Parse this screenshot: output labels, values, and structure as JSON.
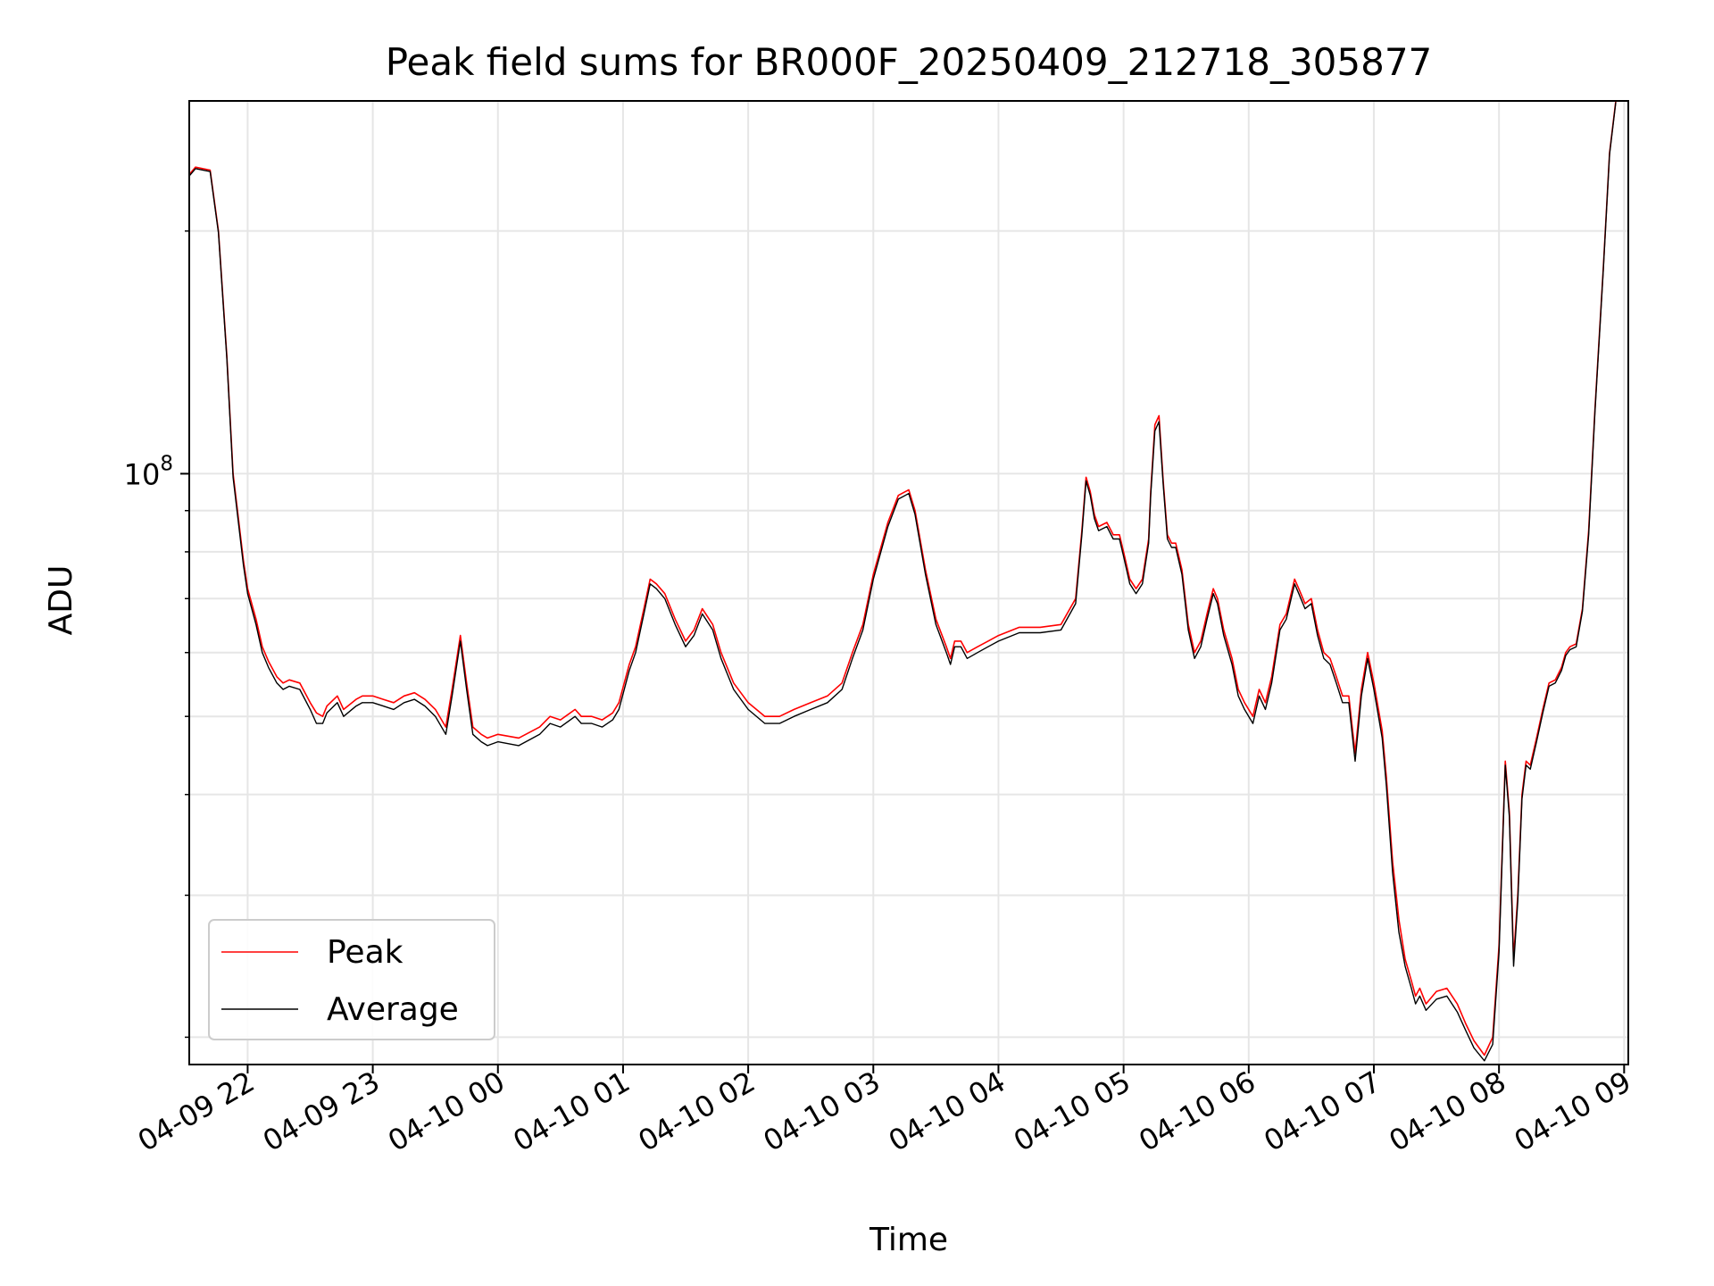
{
  "chart_data": {
    "type": "line",
    "title": "Peak field sums for BR000F_20250409_212718_305877",
    "xlabel": "Time",
    "ylabel": "ADU",
    "yscale": "log",
    "grid": true,
    "legend_position": "lower-left",
    "xlim": [
      "2025-04-09 21:32",
      "2025-04-10 09:02"
    ],
    "ylim": [
      18500000,
      290000000
    ],
    "x_ticks": [
      "2025-04-09 22:00",
      "2025-04-09 23:00",
      "2025-04-10 00:00",
      "2025-04-10 01:00",
      "2025-04-10 02:00",
      "2025-04-10 03:00",
      "2025-04-10 04:00",
      "2025-04-10 05:00",
      "2025-04-10 06:00",
      "2025-04-10 07:00",
      "2025-04-10 08:00",
      "2025-04-10 09:00"
    ],
    "x_tick_labels": [
      "04-09 22",
      "04-09 23",
      "04-10 00",
      "04-10 01",
      "04-10 02",
      "04-10 03",
      "04-10 04",
      "04-10 05",
      "04-10 06",
      "04-10 07",
      "04-10 08",
      "04-10 09"
    ],
    "y_tick_label": {
      "value": 100000000,
      "base": "10",
      "exponent": "8"
    },
    "series": [
      {
        "name": "Peak",
        "color": "#ff0000",
        "x": [
          "2025-04-09 21:32",
          "2025-04-09 21:35",
          "2025-04-09 21:42",
          "2025-04-09 21:46",
          "2025-04-09 21:50",
          "2025-04-09 21:53",
          "2025-04-09 21:58",
          "2025-04-09 22:00",
          "2025-04-09 22:04",
          "2025-04-09 22:07",
          "2025-04-09 22:10",
          "2025-04-09 22:14",
          "2025-04-09 22:17",
          "2025-04-09 22:20",
          "2025-04-09 22:25",
          "2025-04-09 22:30",
          "2025-04-09 22:33",
          "2025-04-09 22:36",
          "2025-04-09 22:38",
          "2025-04-09 22:43",
          "2025-04-09 22:46",
          "2025-04-09 22:52",
          "2025-04-09 22:55",
          "2025-04-09 23:00",
          "2025-04-09 23:05",
          "2025-04-09 23:10",
          "2025-04-09 23:15",
          "2025-04-09 23:20",
          "2025-04-09 23:25",
          "2025-04-09 23:30",
          "2025-04-09 23:35",
          "2025-04-09 23:38",
          "2025-04-09 23:42",
          "2025-04-09 23:45",
          "2025-04-09 23:48",
          "2025-04-09 23:52",
          "2025-04-09 23:55",
          "2025-04-10 00:00",
          "2025-04-10 00:10",
          "2025-04-10 00:20",
          "2025-04-10 00:25",
          "2025-04-10 00:30",
          "2025-04-10 00:37",
          "2025-04-10 00:40",
          "2025-04-10 00:45",
          "2025-04-10 00:50",
          "2025-04-10 00:55",
          "2025-04-10 00:58",
          "2025-04-10 01:03",
          "2025-04-10 01:06",
          "2025-04-10 01:10",
          "2025-04-10 01:13",
          "2025-04-10 01:16",
          "2025-04-10 01:20",
          "2025-04-10 01:25",
          "2025-04-10 01:30",
          "2025-04-10 01:34",
          "2025-04-10 01:38",
          "2025-04-10 01:43",
          "2025-04-10 01:47",
          "2025-04-10 01:53",
          "2025-04-10 02:00",
          "2025-04-10 02:08",
          "2025-04-10 02:15",
          "2025-04-10 02:22",
          "2025-04-10 02:30",
          "2025-04-10 02:38",
          "2025-04-10 02:45",
          "2025-04-10 02:50",
          "2025-04-10 02:55",
          "2025-04-10 03:00",
          "2025-04-10 03:07",
          "2025-04-10 03:12",
          "2025-04-10 03:17",
          "2025-04-10 03:20",
          "2025-04-10 03:25",
          "2025-04-10 03:30",
          "2025-04-10 03:35",
          "2025-04-10 03:37",
          "2025-04-10 03:39",
          "2025-04-10 03:42",
          "2025-04-10 03:45",
          "2025-04-10 03:50",
          "2025-04-10 03:55",
          "2025-04-10 04:00",
          "2025-04-10 04:10",
          "2025-04-10 04:20",
          "2025-04-10 04:30",
          "2025-04-10 04:37",
          "2025-04-10 04:40",
          "2025-04-10 04:42",
          "2025-04-10 04:44",
          "2025-04-10 04:46",
          "2025-04-10 04:48",
          "2025-04-10 04:52",
          "2025-04-10 04:55",
          "2025-04-10 04:58",
          "2025-04-10 05:00",
          "2025-04-10 05:03",
          "2025-04-10 05:06",
          "2025-04-10 05:09",
          "2025-04-10 05:12",
          "2025-04-10 05:13",
          "2025-04-10 05:15",
          "2025-04-10 05:17",
          "2025-04-10 05:19",
          "2025-04-10 05:21",
          "2025-04-10 05:23",
          "2025-04-10 05:25",
          "2025-04-10 05:28",
          "2025-04-10 05:31",
          "2025-04-10 05:34",
          "2025-04-10 05:37",
          "2025-04-10 05:40",
          "2025-04-10 05:43",
          "2025-04-10 05:45",
          "2025-04-10 05:48",
          "2025-04-10 05:52",
          "2025-04-10 05:55",
          "2025-04-10 05:58",
          "2025-04-10 06:02",
          "2025-04-10 06:05",
          "2025-04-10 06:08",
          "2025-04-10 06:11",
          "2025-04-10 06:15",
          "2025-04-10 06:18",
          "2025-04-10 06:22",
          "2025-04-10 06:24",
          "2025-04-10 06:27",
          "2025-04-10 06:30",
          "2025-04-10 06:33",
          "2025-04-10 06:36",
          "2025-04-10 06:39",
          "2025-04-10 06:42",
          "2025-04-10 06:45",
          "2025-04-10 06:48",
          "2025-04-10 06:51",
          "2025-04-10 06:54",
          "2025-04-10 06:57",
          "2025-04-10 07:00",
          "2025-04-10 07:04",
          "2025-04-10 07:06",
          "2025-04-10 07:09",
          "2025-04-10 07:12",
          "2025-04-10 07:15",
          "2025-04-10 07:18",
          "2025-04-10 07:20",
          "2025-04-10 07:22",
          "2025-04-10 07:25",
          "2025-04-10 07:30",
          "2025-04-10 07:35",
          "2025-04-10 07:40",
          "2025-04-10 07:44",
          "2025-04-10 07:48",
          "2025-04-10 07:53",
          "2025-04-10 07:57",
          "2025-04-10 08:00",
          "2025-04-10 08:03",
          "2025-04-10 08:05",
          "2025-04-10 08:07",
          "2025-04-10 08:09",
          "2025-04-10 08:11",
          "2025-04-10 08:13",
          "2025-04-10 08:15",
          "2025-04-10 08:18",
          "2025-04-10 08:21",
          "2025-04-10 08:24",
          "2025-04-10 08:27",
          "2025-04-10 08:30",
          "2025-04-10 08:32",
          "2025-04-10 08:34",
          "2025-04-10 08:37",
          "2025-04-10 08:40",
          "2025-04-10 08:43",
          "2025-04-10 08:46",
          "2025-04-10 08:50",
          "2025-04-10 08:53",
          "2025-04-10 08:56"
        ],
        "y": [
          235000000,
          240000000,
          238000000,
          200000000,
          140000000,
          100000000,
          78000000,
          72000000,
          66000000,
          61000000,
          58500000,
          56000000,
          55000000,
          55500000,
          55000000,
          52000000,
          50500000,
          50000000,
          51500000,
          53000000,
          51000000,
          52500000,
          53000000,
          53000000,
          52500000,
          52000000,
          53000000,
          53500000,
          52500000,
          51000000,
          48500000,
          54000000,
          63000000,
          55000000,
          48500000,
          47500000,
          47000000,
          47500000,
          47000000,
          48500000,
          50000000,
          49500000,
          51000000,
          50000000,
          50000000,
          49500000,
          50500000,
          52000000,
          58000000,
          61000000,
          68000000,
          74000000,
          73000000,
          71000000,
          66000000,
          62000000,
          64000000,
          68000000,
          65000000,
          60000000,
          55000000,
          52000000,
          50000000,
          50000000,
          51000000,
          52000000,
          53000000,
          55000000,
          60000000,
          65000000,
          75000000,
          87000000,
          94000000,
          95500000,
          90000000,
          76000000,
          66000000,
          61000000,
          59000000,
          62000000,
          62000000,
          60000000,
          61000000,
          62000000,
          63000000,
          64500000,
          64500000,
          65000000,
          70000000,
          85000000,
          99000000,
          95000000,
          89000000,
          86000000,
          87000000,
          84000000,
          84000000,
          80000000,
          74000000,
          72000000,
          74000000,
          83000000,
          95000000,
          115000000,
          118000000,
          98000000,
          84000000,
          82000000,
          82000000,
          76000000,
          65000000,
          60000000,
          62000000,
          67000000,
          72000000,
          70000000,
          64000000,
          59000000,
          54000000,
          52000000,
          50000000,
          54000000,
          52000000,
          56000000,
          65000000,
          67000000,
          74000000,
          72000000,
          69000000,
          70000000,
          64000000,
          60000000,
          59000000,
          56000000,
          53000000,
          53000000,
          45000000,
          54000000,
          60000000,
          55000000,
          48000000,
          42000000,
          33000000,
          28000000,
          25000000,
          23500000,
          22500000,
          23000000,
          22000000,
          22800000,
          23000000,
          22000000,
          20800000,
          19800000,
          19000000,
          20000000,
          26000000,
          44000000,
          38000000,
          25000000,
          30000000,
          40000000,
          44000000,
          43500000,
          47000000,
          51000000,
          55000000,
          55500000,
          57500000,
          60000000,
          61000000,
          61500000,
          68000000,
          85000000,
          120000000,
          180000000,
          250000000,
          290000000
        ]
      },
      {
        "name": "Average",
        "color": "#000000",
        "x": [
          "2025-04-09 21:32",
          "2025-04-09 21:35",
          "2025-04-09 21:42",
          "2025-04-09 21:46",
          "2025-04-09 21:50",
          "2025-04-09 21:53",
          "2025-04-09 21:58",
          "2025-04-09 22:00",
          "2025-04-09 22:04",
          "2025-04-09 22:07",
          "2025-04-09 22:10",
          "2025-04-09 22:14",
          "2025-04-09 22:17",
          "2025-04-09 22:20",
          "2025-04-09 22:25",
          "2025-04-09 22:30",
          "2025-04-09 22:33",
          "2025-04-09 22:36",
          "2025-04-09 22:38",
          "2025-04-09 22:43",
          "2025-04-09 22:46",
          "2025-04-09 22:52",
          "2025-04-09 22:55",
          "2025-04-09 23:00",
          "2025-04-09 23:05",
          "2025-04-09 23:10",
          "2025-04-09 23:15",
          "2025-04-09 23:20",
          "2025-04-09 23:25",
          "2025-04-09 23:30",
          "2025-04-09 23:35",
          "2025-04-09 23:38",
          "2025-04-09 23:42",
          "2025-04-09 23:45",
          "2025-04-09 23:48",
          "2025-04-09 23:52",
          "2025-04-09 23:55",
          "2025-04-10 00:00",
          "2025-04-10 00:10",
          "2025-04-10 00:20",
          "2025-04-10 00:25",
          "2025-04-10 00:30",
          "2025-04-10 00:37",
          "2025-04-10 00:40",
          "2025-04-10 00:45",
          "2025-04-10 00:50",
          "2025-04-10 00:55",
          "2025-04-10 00:58",
          "2025-04-10 01:03",
          "2025-04-10 01:06",
          "2025-04-10 01:10",
          "2025-04-10 01:13",
          "2025-04-10 01:16",
          "2025-04-10 01:20",
          "2025-04-10 01:25",
          "2025-04-10 01:30",
          "2025-04-10 01:34",
          "2025-04-10 01:38",
          "2025-04-10 01:43",
          "2025-04-10 01:47",
          "2025-04-10 01:53",
          "2025-04-10 02:00",
          "2025-04-10 02:08",
          "2025-04-10 02:15",
          "2025-04-10 02:22",
          "2025-04-10 02:30",
          "2025-04-10 02:38",
          "2025-04-10 02:45",
          "2025-04-10 02:50",
          "2025-04-10 02:55",
          "2025-04-10 03:00",
          "2025-04-10 03:07",
          "2025-04-10 03:12",
          "2025-04-10 03:17",
          "2025-04-10 03:20",
          "2025-04-10 03:25",
          "2025-04-10 03:30",
          "2025-04-10 03:35",
          "2025-04-10 03:37",
          "2025-04-10 03:39",
          "2025-04-10 03:42",
          "2025-04-10 03:45",
          "2025-04-10 03:50",
          "2025-04-10 03:55",
          "2025-04-10 04:00",
          "2025-04-10 04:10",
          "2025-04-10 04:20",
          "2025-04-10 04:30",
          "2025-04-10 04:37",
          "2025-04-10 04:40",
          "2025-04-10 04:42",
          "2025-04-10 04:44",
          "2025-04-10 04:46",
          "2025-04-10 04:48",
          "2025-04-10 04:52",
          "2025-04-10 04:55",
          "2025-04-10 04:58",
          "2025-04-10 05:00",
          "2025-04-10 05:03",
          "2025-04-10 05:06",
          "2025-04-10 05:09",
          "2025-04-10 05:12",
          "2025-04-10 05:13",
          "2025-04-10 05:15",
          "2025-04-10 05:17",
          "2025-04-10 05:19",
          "2025-04-10 05:21",
          "2025-04-10 05:23",
          "2025-04-10 05:25",
          "2025-04-10 05:28",
          "2025-04-10 05:31",
          "2025-04-10 05:34",
          "2025-04-10 05:37",
          "2025-04-10 05:40",
          "2025-04-10 05:43",
          "2025-04-10 05:45",
          "2025-04-10 05:48",
          "2025-04-10 05:52",
          "2025-04-10 05:55",
          "2025-04-10 05:58",
          "2025-04-10 06:02",
          "2025-04-10 06:05",
          "2025-04-10 06:08",
          "2025-04-10 06:11",
          "2025-04-10 06:15",
          "2025-04-10 06:18",
          "2025-04-10 06:22",
          "2025-04-10 06:24",
          "2025-04-10 06:27",
          "2025-04-10 06:30",
          "2025-04-10 06:33",
          "2025-04-10 06:36",
          "2025-04-10 06:39",
          "2025-04-10 06:42",
          "2025-04-10 06:45",
          "2025-04-10 06:48",
          "2025-04-10 06:51",
          "2025-04-10 06:54",
          "2025-04-10 06:57",
          "2025-04-10 07:00",
          "2025-04-10 07:04",
          "2025-04-10 07:06",
          "2025-04-10 07:09",
          "2025-04-10 07:12",
          "2025-04-10 07:15",
          "2025-04-10 07:18",
          "2025-04-10 07:20",
          "2025-04-10 07:22",
          "2025-04-10 07:25",
          "2025-04-10 07:30",
          "2025-04-10 07:35",
          "2025-04-10 07:40",
          "2025-04-10 07:44",
          "2025-04-10 07:48",
          "2025-04-10 07:53",
          "2025-04-10 07:57",
          "2025-04-10 08:00",
          "2025-04-10 08:03",
          "2025-04-10 08:05",
          "2025-04-10 08:07",
          "2025-04-10 08:09",
          "2025-04-10 08:11",
          "2025-04-10 08:13",
          "2025-04-10 08:15",
          "2025-04-10 08:18",
          "2025-04-10 08:21",
          "2025-04-10 08:24",
          "2025-04-10 08:27",
          "2025-04-10 08:30",
          "2025-04-10 08:32",
          "2025-04-10 08:34",
          "2025-04-10 08:37",
          "2025-04-10 08:40",
          "2025-04-10 08:43",
          "2025-04-10 08:46",
          "2025-04-10 08:50",
          "2025-04-10 08:53",
          "2025-04-10 08:56"
        ],
        "y": [
          234000000,
          239000000,
          237000000,
          199000000,
          139000000,
          99000000,
          77000000,
          71000000,
          65000000,
          60000000,
          57500000,
          55000000,
          54000000,
          54500000,
          54000000,
          51000000,
          49000000,
          49000000,
          50500000,
          52000000,
          50000000,
          51500000,
          52000000,
          52000000,
          51500000,
          51000000,
          52000000,
          52500000,
          51500000,
          50000000,
          47500000,
          53000000,
          62000000,
          54000000,
          47500000,
          46500000,
          46000000,
          46500000,
          46000000,
          47500000,
          49000000,
          48500000,
          50000000,
          49000000,
          49000000,
          48500000,
          49500000,
          51000000,
          57000000,
          60000000,
          67000000,
          73000000,
          72000000,
          70000000,
          65000000,
          61000000,
          63000000,
          67000000,
          64000000,
          59000000,
          54000000,
          51000000,
          49000000,
          49000000,
          50000000,
          51000000,
          52000000,
          54000000,
          59000000,
          64000000,
          74000000,
          86000000,
          93000000,
          94500000,
          89000000,
          75000000,
          65000000,
          60000000,
          58000000,
          61000000,
          61000000,
          59000000,
          60000000,
          61000000,
          62000000,
          63500000,
          63500000,
          64000000,
          69000000,
          84000000,
          98000000,
          94000000,
          88000000,
          85000000,
          86000000,
          83000000,
          83000000,
          79000000,
          73000000,
          71000000,
          73000000,
          82000000,
          94000000,
          113000000,
          116000000,
          97000000,
          83000000,
          81000000,
          81000000,
          75000000,
          64000000,
          59000000,
          61000000,
          66000000,
          71000000,
          69000000,
          63000000,
          58000000,
          53000000,
          51000000,
          49000000,
          53000000,
          51000000,
          55000000,
          64000000,
          66000000,
          73000000,
          71000000,
          68000000,
          69000000,
          63000000,
          59000000,
          58000000,
          55000000,
          52000000,
          52000000,
          44000000,
          53000000,
          59000000,
          54000000,
          47000000,
          41000000,
          32000000,
          27000000,
          24500000,
          23000000,
          22000000,
          22500000,
          21600000,
          22300000,
          22500000,
          21500000,
          20400000,
          19400000,
          18700000,
          19600000,
          25500000,
          43500000,
          37500000,
          24500000,
          29500000,
          39500000,
          43500000,
          43000000,
          46500000,
          50500000,
          54500000,
          55000000,
          57000000,
          59500000,
          60500000,
          61000000,
          67500000,
          84000000,
          119000000,
          179000000,
          249000000,
          289000000
        ]
      }
    ]
  }
}
